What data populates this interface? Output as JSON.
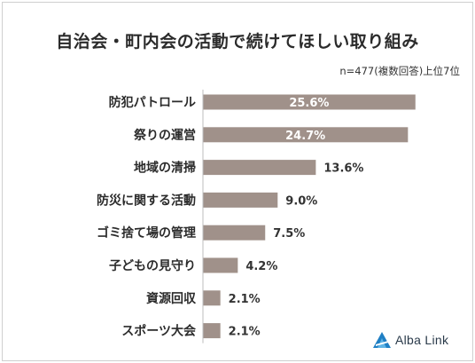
{
  "chart_data": {
    "type": "bar",
    "orientation": "horizontal",
    "title": "自治会・町内会の活動で続けてほしい取り組み",
    "note": "n=477(複数回答)上位7位",
    "categories": [
      "防犯パトロール",
      "祭りの運営",
      "地域の清掃",
      "防災に関する活動",
      "ゴミ捨て場の管理",
      "子どもの見守り",
      "資源回収",
      "スポーツ大会"
    ],
    "values": [
      25.6,
      24.7,
      13.6,
      9.0,
      7.5,
      4.2,
      2.1,
      2.1
    ],
    "value_labels": [
      "25.6%",
      "24.7%",
      "13.6%",
      "9.0%",
      "7.5%",
      "4.2%",
      "2.1%",
      "2.1%"
    ],
    "xlim": [
      0,
      26.8
    ],
    "bar_color": "#a0918a",
    "grid": false,
    "legend": "none"
  },
  "logo": {
    "text": "Alba Link",
    "icon": "alba-link-logo-icon"
  }
}
